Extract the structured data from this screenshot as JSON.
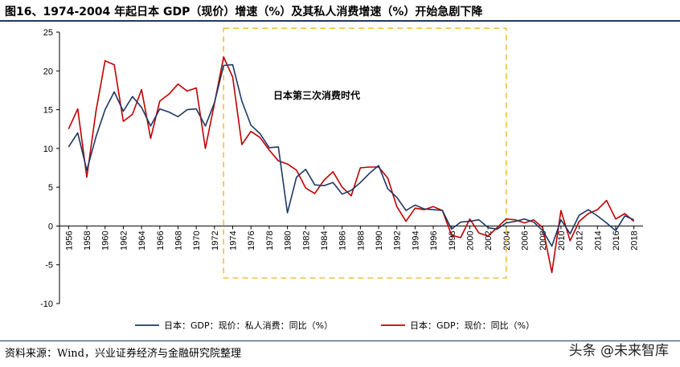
{
  "header": {
    "title": "图16、1974-2004 年起日本 GDP（现价）增速（%）及其私人消费增速（%）开始急剧下降"
  },
  "footer": {
    "source": "资料来源：Wind，兴业证券经济与金融研究院整理",
    "watermark": "头条 @未来智库"
  },
  "chart_data": {
    "type": "line",
    "title": "图16、1974-2004 年起日本 GDP（现价）增速（%）及其私人消费增速（%）开始急剧下降",
    "xlabel": "",
    "ylabel": "",
    "ylim": [
      -10,
      25
    ],
    "yticks": [
      -10,
      -5,
      0,
      5,
      10,
      15,
      20,
      25
    ],
    "xlim": [
      1955,
      2019
    ],
    "xticks": [
      1956,
      1958,
      1960,
      1962,
      1964,
      1966,
      1968,
      1970,
      1972,
      1974,
      1976,
      1978,
      1980,
      1982,
      1984,
      1986,
      1988,
      1990,
      1992,
      1994,
      1996,
      1998,
      2000,
      2002,
      2004,
      2006,
      2008,
      2010,
      2012,
      2014,
      2016,
      2018
    ],
    "grid": false,
    "legend": "bottom",
    "annotation": {
      "text": "日本第三次消费时代",
      "x_range": [
        1973,
        2004
      ],
      "y_range": [
        -6.7,
        25.5
      ]
    },
    "x": [
      1956,
      1957,
      1958,
      1959,
      1960,
      1961,
      1962,
      1963,
      1964,
      1965,
      1966,
      1967,
      1968,
      1969,
      1970,
      1971,
      1972,
      1973,
      1974,
      1975,
      1976,
      1977,
      1978,
      1979,
      1980,
      1981,
      1982,
      1983,
      1984,
      1985,
      1986,
      1987,
      1988,
      1989,
      1990,
      1991,
      1992,
      1993,
      1994,
      1995,
      1996,
      1997,
      1998,
      1999,
      2000,
      2001,
      2002,
      2003,
      2004,
      2005,
      2006,
      2007,
      2008,
      2009,
      2010,
      2011,
      2012,
      2013,
      2014,
      2015,
      2016,
      2017,
      2018
    ],
    "series": [
      {
        "name": "日本：GDP：现价：私人消费：同比（%）",
        "color": "#1f3864",
        "values": [
          10.2,
          12.0,
          7.2,
          11.5,
          15.0,
          17.3,
          14.8,
          16.7,
          15.3,
          12.9,
          15.1,
          14.7,
          14.1,
          15.0,
          15.1,
          12.9,
          15.9,
          20.7,
          20.8,
          16.1,
          13.0,
          11.9,
          10.1,
          10.2,
          1.7,
          6.3,
          7.3,
          5.3,
          5.2,
          5.6,
          4.1,
          4.6,
          5.6,
          6.8,
          7.8,
          4.8,
          3.7,
          2.0,
          2.7,
          2.2,
          2.1,
          2.0,
          -0.4,
          0.5,
          0.6,
          0.8,
          -0.2,
          -0.4,
          0.4,
          0.6,
          0.9,
          0.5,
          -0.6,
          -2.6,
          0.8,
          -1.0,
          1.4,
          2.1,
          1.3,
          0.4,
          -0.6,
          1.3,
          0.8
        ]
      },
      {
        "name": "日本：GDP：现价：同比（%）",
        "color": "#c00000",
        "values": [
          12.5,
          15.1,
          6.3,
          14.8,
          21.3,
          20.8,
          13.5,
          14.4,
          17.6,
          11.3,
          16.1,
          17.0,
          18.3,
          17.4,
          17.8,
          10.0,
          15.8,
          21.8,
          19.2,
          10.5,
          12.2,
          11.4,
          9.8,
          8.4,
          8.0,
          7.2,
          4.9,
          4.2,
          5.9,
          7.0,
          5.0,
          3.9,
          7.5,
          7.6,
          7.6,
          6.2,
          2.5,
          0.6,
          2.3,
          2.1,
          2.5,
          2.0,
          -1.2,
          -1.5,
          0.9,
          -0.9,
          -1.3,
          -0.2,
          0.9,
          0.8,
          0.4,
          0.8,
          -0.2,
          -6.0,
          2.0,
          -1.9,
          0.6,
          1.6,
          2.1,
          3.3,
          0.9,
          1.6,
          0.6
        ]
      }
    ]
  }
}
